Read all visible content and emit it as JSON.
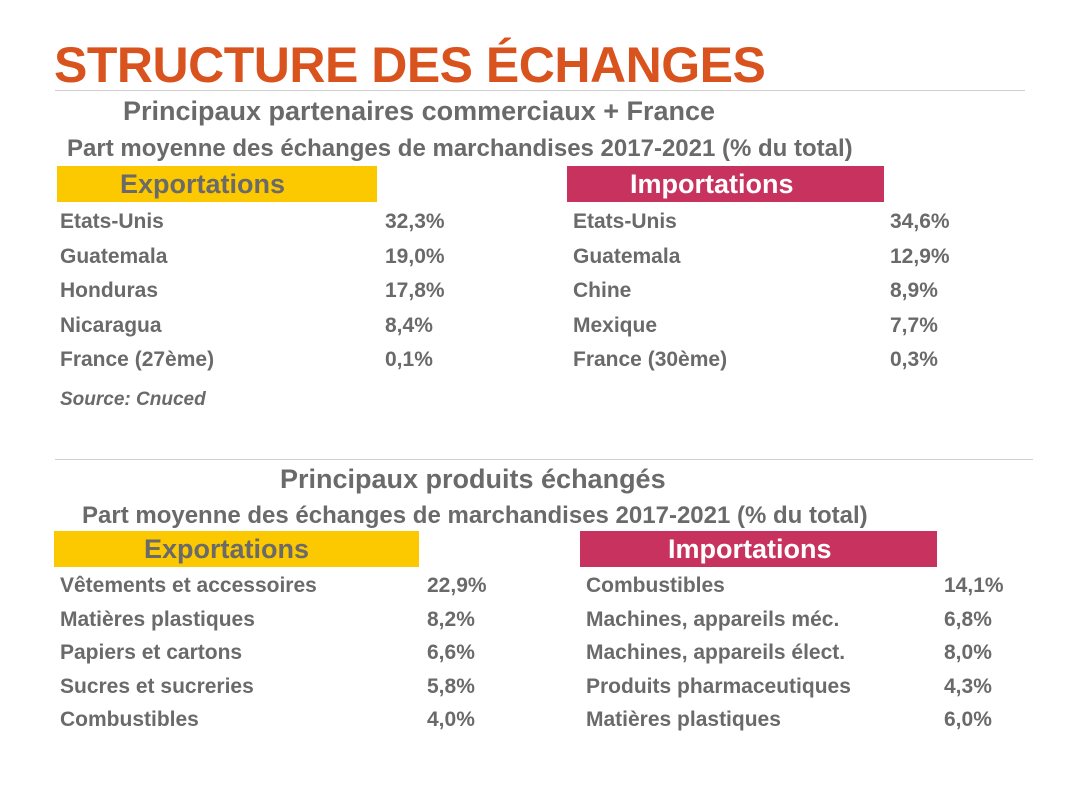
{
  "title": "STRUCTURE DES ÉCHANGES",
  "partners": {
    "heading": "Principaux partenaires commerciaux + France",
    "subheading": "Part moyenne des échanges de marchandises 2017-2021 (% du total)",
    "exports": {
      "label": "Exportations",
      "rows": [
        {
          "name": "Etats-Unis",
          "value": "32,3%"
        },
        {
          "name": "Guatemala",
          "value": "19,0%"
        },
        {
          "name": "Honduras",
          "value": "17,8%"
        },
        {
          "name": "Nicaragua",
          "value": "8,4%"
        },
        {
          "name": "France (27ème)",
          "value": "0,1%"
        }
      ]
    },
    "imports": {
      "label": "Importations",
      "rows": [
        {
          "name": "Etats-Unis",
          "value": "34,6%"
        },
        {
          "name": "Guatemala",
          "value": "12,9%"
        },
        {
          "name": "Chine",
          "value": "8,9%"
        },
        {
          "name": "Mexique",
          "value": "7,7%"
        },
        {
          "name": "France (30ème)",
          "value": "0,3%"
        }
      ]
    },
    "source": "Source: Cnuced"
  },
  "products": {
    "heading": "Principaux produits échangés",
    "subheading": "Part moyenne des échanges de marchandises 2017-2021 (% du total)",
    "exports": {
      "label": "Exportations",
      "rows": [
        {
          "name": "Vêtements et accessoires",
          "value": "22,9%"
        },
        {
          "name": "Matières plastiques",
          "value": "8,2%"
        },
        {
          "name": "Papiers et cartons",
          "value": "6,6%"
        },
        {
          "name": "Sucres et sucreries",
          "value": "5,8%"
        },
        {
          "name": "Combustibles",
          "value": "4,0%"
        }
      ]
    },
    "imports": {
      "label": "Importations",
      "rows": [
        {
          "name": "Combustibles",
          "value": "14,1%"
        },
        {
          "name": "Machines, appareils  méc.",
          "value": "6,8%"
        },
        {
          "name": "Machines, appareils élect.",
          "value": "8,0%"
        },
        {
          "name": "Produits pharmaceutiques",
          "value": "4,3%"
        },
        {
          "name": "Matières plastiques",
          "value": "6,0%"
        }
      ]
    }
  },
  "colors": {
    "title": "#d9531e",
    "exports": "#fcc800",
    "imports": "#c8325e",
    "text": "#6a6a6a"
  }
}
